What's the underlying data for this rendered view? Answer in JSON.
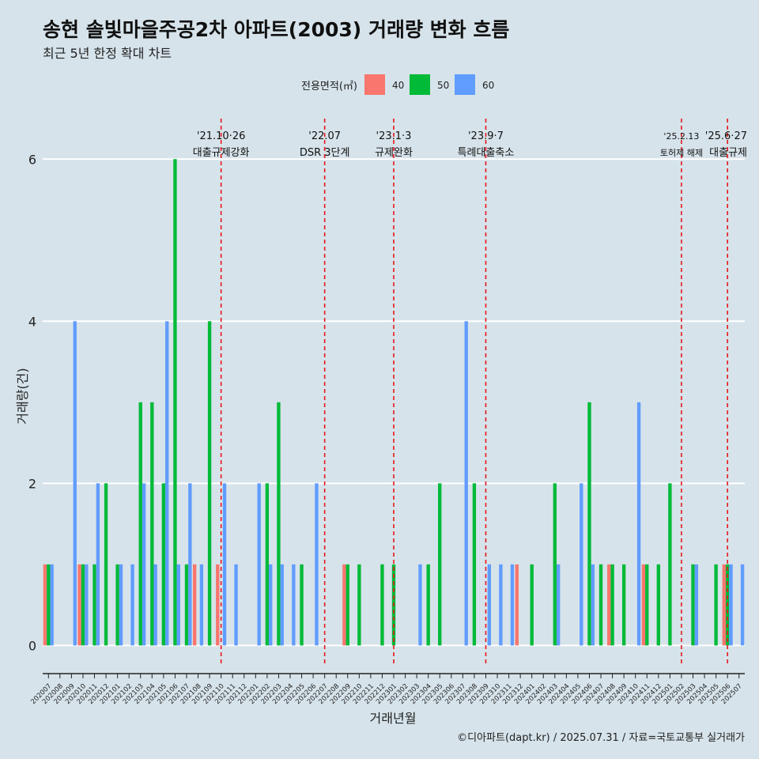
{
  "title": "송현 솔빛마을주공2차 아파트(2003) 거래량 변화 흐름",
  "subtitle": "최근 5년 한정 확대 차트",
  "caption": "©디아파트(dapt.kr) / 2025.07.31 / 자료=국토교통부 실거래가",
  "colors": {
    "40": "#f8766d",
    "50": "#00ba38",
    "60": "#619cff",
    "grid": "#ffffff",
    "event": "#e8161b",
    "background": "#d6e3ea"
  },
  "chart_data": {
    "type": "bar",
    "xlabel": "거래년월",
    "ylabel": "거래량(건)",
    "ylim": [
      -0.25,
      6.5
    ],
    "yticks": [
      0,
      2,
      4,
      6
    ],
    "grid": true,
    "legend": {
      "title": "전용면적(㎡)",
      "position": "top",
      "items": [
        "40",
        "50",
        "60"
      ]
    },
    "categories": [
      "202007",
      "202008",
      "202009",
      "202010",
      "202011",
      "202012",
      "202101",
      "202102",
      "202103",
      "202104",
      "202105",
      "202106",
      "202107",
      "202108",
      "202109",
      "202110",
      "202111",
      "202112",
      "202201",
      "202202",
      "202203",
      "202204",
      "202205",
      "202206",
      "202207",
      "202208",
      "202209",
      "202210",
      "202211",
      "202212",
      "202301",
      "202302",
      "202303",
      "202304",
      "202305",
      "202306",
      "202307",
      "202308",
      "202309",
      "202310",
      "202311",
      "202312",
      "202401",
      "202402",
      "202403",
      "202404",
      "202405",
      "202406",
      "202407",
      "202408",
      "202409",
      "202410",
      "202411",
      "202412",
      "202501",
      "202502",
      "202503",
      "202504",
      "202505",
      "202506",
      "202507"
    ],
    "series": [
      {
        "name": "40",
        "values": [
          1,
          0,
          0,
          1,
          0,
          0,
          0,
          0,
          0,
          0,
          0,
          0,
          0,
          1,
          0,
          1,
          0,
          0,
          0,
          0,
          0,
          0,
          0,
          0,
          0,
          0,
          1,
          0,
          0,
          0,
          0,
          0,
          0,
          0,
          0,
          0,
          0,
          0,
          0,
          0,
          0,
          1,
          0,
          0,
          0,
          0,
          0,
          0,
          0,
          1,
          0,
          0,
          1,
          0,
          0,
          0,
          0,
          0,
          0,
          1,
          0
        ]
      },
      {
        "name": "50",
        "values": [
          1,
          0,
          0,
          1,
          1,
          2,
          1,
          0,
          3,
          3,
          2,
          6,
          1,
          0,
          4,
          0,
          0,
          0,
          0,
          2,
          3,
          0,
          1,
          0,
          0,
          0,
          1,
          1,
          0,
          1,
          1,
          0,
          0,
          1,
          2,
          0,
          0,
          2,
          0,
          0,
          0,
          0,
          1,
          0,
          2,
          0,
          0,
          3,
          1,
          1,
          1,
          0,
          1,
          1,
          2,
          0,
          1,
          0,
          1,
          1,
          0
        ]
      },
      {
        "name": "60",
        "values": [
          1,
          0,
          4,
          1,
          2,
          0,
          1,
          1,
          2,
          1,
          4,
          1,
          2,
          1,
          0,
          2,
          1,
          0,
          2,
          1,
          1,
          1,
          0,
          2,
          0,
          0,
          0,
          0,
          0,
          0,
          0,
          0,
          1,
          0,
          0,
          0,
          4,
          0,
          1,
          1,
          1,
          0,
          0,
          0,
          1,
          0,
          2,
          1,
          0,
          0,
          0,
          3,
          0,
          0,
          0,
          0,
          1,
          0,
          0,
          1,
          1
        ]
      }
    ],
    "events": [
      {
        "date": "202110",
        "label1": "'21.10·26",
        "label2": "대출규제강화"
      },
      {
        "date": "202207",
        "label1": "'22.07",
        "label2": "DSR 3단계"
      },
      {
        "date": "202301",
        "label1": "'23.1·3",
        "label2": "규제완화"
      },
      {
        "date": "202309",
        "label1": "'23.9·7",
        "label2": "특례대출축소"
      },
      {
        "date": "202502",
        "label1": "'25.2.13",
        "label2": "토허제 해제"
      },
      {
        "date": "202506",
        "label1": "'25.6·27",
        "label2": "대출규제"
      }
    ]
  }
}
